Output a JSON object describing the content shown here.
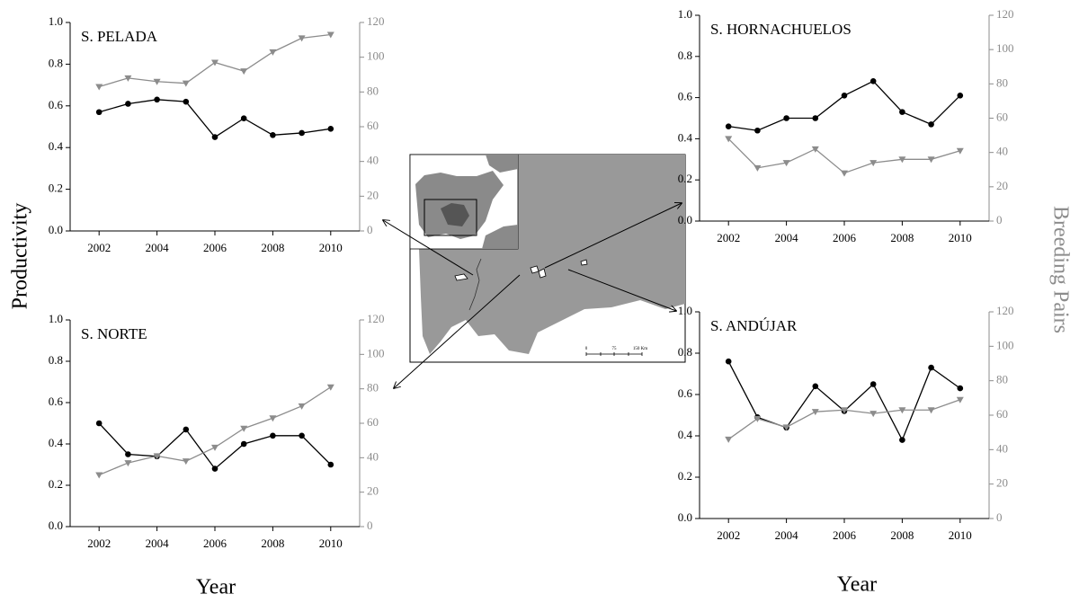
{
  "chart_data": [
    {
      "type": "line",
      "title": "S.  PELADA",
      "x": [
        2002,
        2003,
        2004,
        2005,
        2006,
        2007,
        2008,
        2009,
        2010
      ],
      "xlim": [
        2001,
        2011
      ],
      "xticks": [
        2002,
        2004,
        2006,
        2008,
        2010
      ],
      "ylim": [
        0,
        1
      ],
      "yticks": [
        {
          "value": 0,
          "label": "0.0"
        },
        0.2,
        0.4,
        0.6,
        0.8,
        {
          "value": 1,
          "label": "1.0"
        }
      ],
      "y2lim": [
        0,
        120
      ],
      "y2ticks": [
        0,
        20,
        40,
        60,
        80,
        100,
        120
      ],
      "series": [
        {
          "color": "#000000",
          "marker": "circle",
          "values": [
            0.57,
            0.61,
            0.63,
            0.62,
            0.45,
            0.54,
            0.46,
            0.47,
            0.49
          ]
        },
        {
          "color": "#8c8c8c",
          "marker": "triangle-down",
          "axis": "y2",
          "values": [
            83,
            88,
            86,
            85,
            97,
            92,
            103,
            111,
            113
          ]
        }
      ]
    },
    {
      "type": "line",
      "title": "S. HORNACHUELOS",
      "x": [
        2002,
        2003,
        2004,
        2005,
        2006,
        2007,
        2008,
        2009,
        2010
      ],
      "xlim": [
        2001,
        2011
      ],
      "xticks": [
        2002,
        2004,
        2006,
        2008,
        2010
      ],
      "ylim": [
        0,
        1
      ],
      "yticks": [
        {
          "value": 0,
          "label": "0.0"
        },
        0.2,
        0.4,
        0.6,
        0.8,
        {
          "value": 1,
          "label": "1.0"
        }
      ],
      "y2lim": [
        0,
        120
      ],
      "y2ticks": [
        0,
        20,
        40,
        60,
        80,
        100,
        120
      ],
      "series": [
        {
          "color": "#000000",
          "marker": "circle",
          "values": [
            0.46,
            0.44,
            0.5,
            0.5,
            0.61,
            0.68,
            0.53,
            0.47,
            0.61
          ]
        },
        {
          "color": "#8c8c8c",
          "marker": "triangle-down",
          "axis": "y2",
          "values": [
            48,
            31,
            34,
            42,
            28,
            34,
            36,
            36,
            41
          ]
        }
      ]
    },
    {
      "type": "line",
      "title": "S. NORTE",
      "x": [
        2002,
        2003,
        2004,
        2005,
        2006,
        2007,
        2008,
        2009,
        2010
      ],
      "xlim": [
        2001,
        2011
      ],
      "xticks": [
        2002,
        2004,
        2006,
        2008,
        2010
      ],
      "ylim": [
        0,
        1
      ],
      "yticks": [
        {
          "value": 0,
          "label": "0.0"
        },
        0.2,
        0.4,
        0.6,
        0.8,
        {
          "value": 1,
          "label": "1.0"
        }
      ],
      "y2lim": [
        0,
        120
      ],
      "y2ticks": [
        0,
        20,
        40,
        60,
        80,
        100,
        120
      ],
      "series": [
        {
          "color": "#000000",
          "marker": "circle",
          "values": [
            0.5,
            0.35,
            0.34,
            0.47,
            0.28,
            0.4,
            0.44,
            0.44,
            0.3
          ]
        },
        {
          "color": "#8c8c8c",
          "marker": "triangle-down",
          "axis": "y2",
          "values": [
            30,
            37,
            41,
            38,
            46,
            57,
            63,
            70,
            81
          ]
        }
      ]
    },
    {
      "type": "line",
      "title": "S. ANDÚJAR",
      "x": [
        2002,
        2003,
        2004,
        2005,
        2006,
        2007,
        2008,
        2009,
        2010
      ],
      "xlim": [
        2001,
        2011
      ],
      "xticks": [
        2002,
        2004,
        2006,
        2008,
        2010
      ],
      "ylim": [
        0,
        1
      ],
      "yticks": [
        {
          "value": 0,
          "label": "0.0"
        },
        0.2,
        0.4,
        0.6,
        0.8,
        {
          "value": 1,
          "label": "1.0"
        }
      ],
      "y2lim": [
        0,
        120
      ],
      "y2ticks": [
        0,
        20,
        40,
        60,
        80,
        100,
        120
      ],
      "series": [
        {
          "color": "#000000",
          "marker": "circle",
          "values": [
            0.76,
            0.49,
            0.44,
            0.64,
            0.52,
            0.65,
            0.38,
            0.73,
            0.63
          ]
        },
        {
          "color": "#8c8c8c",
          "marker": "triangle-down",
          "axis": "y2",
          "values": [
            46,
            58,
            53,
            62,
            63,
            61,
            63,
            63,
            69
          ]
        }
      ]
    }
  ],
  "axis_titles": {
    "y": "Productivity",
    "y2": "Breeding Pairs",
    "x": [
      "Year",
      "Year"
    ]
  },
  "map": {
    "scale_labels": [
      "0",
      "75",
      "150 Km"
    ]
  }
}
